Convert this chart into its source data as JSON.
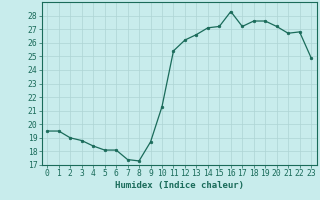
{
  "x": [
    0,
    1,
    2,
    3,
    4,
    5,
    6,
    7,
    8,
    9,
    10,
    11,
    12,
    13,
    14,
    15,
    16,
    17,
    18,
    19,
    20,
    21,
    22,
    23
  ],
  "y": [
    19.5,
    19.5,
    19.0,
    18.8,
    18.4,
    18.1,
    18.1,
    17.4,
    17.3,
    18.7,
    21.3,
    25.4,
    26.2,
    26.6,
    27.1,
    27.2,
    28.3,
    27.2,
    27.6,
    27.6,
    27.2,
    26.7,
    26.8,
    24.9
  ],
  "line_color": "#1a6b5a",
  "marker": "o",
  "marker_size": 2.0,
  "bg_color": "#c8ecec",
  "grid_color": "#aed4d4",
  "tick_color": "#1a6b5a",
  "axis_color": "#1a6b5a",
  "xlabel": "Humidex (Indice chaleur)",
  "ylabel": "",
  "xlim": [
    -0.5,
    23.5
  ],
  "ylim": [
    17,
    29
  ],
  "yticks": [
    17,
    18,
    19,
    20,
    21,
    22,
    23,
    24,
    25,
    26,
    27,
    28
  ],
  "xticks": [
    0,
    1,
    2,
    3,
    4,
    5,
    6,
    7,
    8,
    9,
    10,
    11,
    12,
    13,
    14,
    15,
    16,
    17,
    18,
    19,
    20,
    21,
    22,
    23
  ],
  "xlabel_fontsize": 6.5,
  "tick_fontsize": 5.8
}
